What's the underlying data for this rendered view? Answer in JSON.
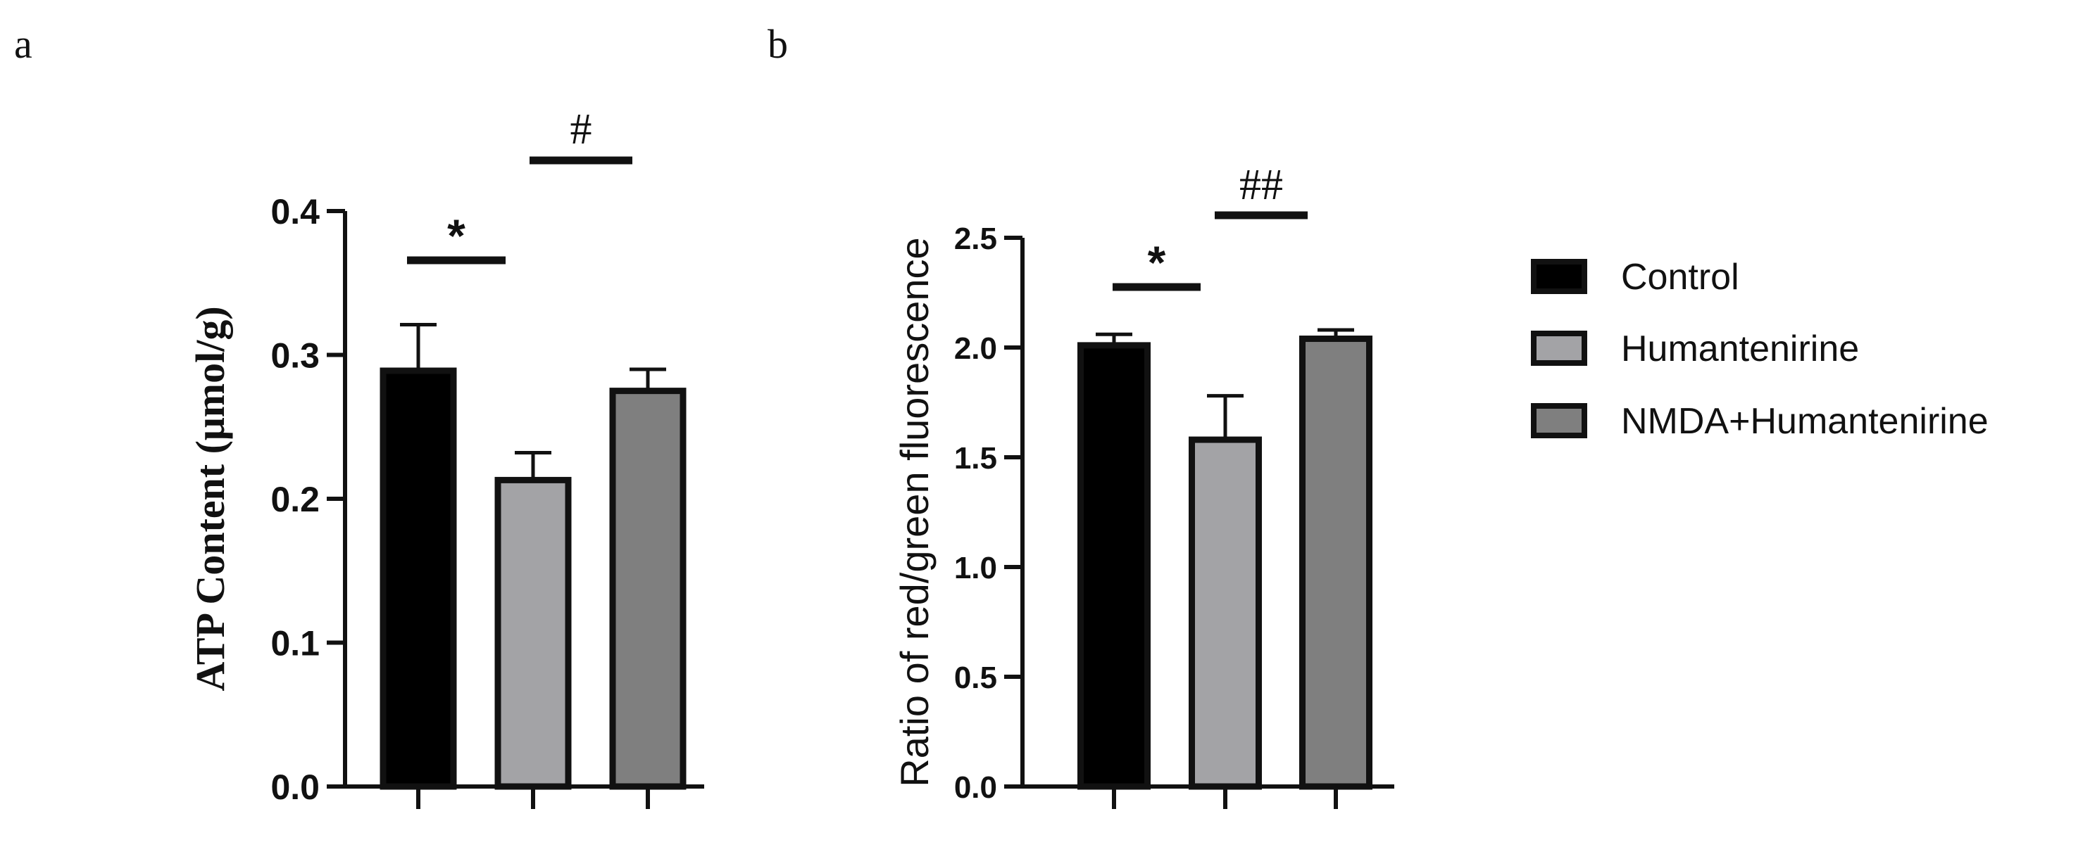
{
  "panels": [
    {
      "label": "a"
    },
    {
      "label": "b"
    }
  ],
  "legend": [
    {
      "name": "Control",
      "color": "#000000"
    },
    {
      "name": "Humantenirine",
      "color": "#a3a3a6"
    },
    {
      "name": "NMDA+Humantenirine",
      "color": "#7f7f7f"
    }
  ],
  "chart_data": [
    {
      "type": "bar",
      "panel": "a",
      "categories": [
        "Control",
        "Humantenirine",
        "NMDA+Humantenirine"
      ],
      "values": [
        0.289,
        0.213,
        0.275
      ],
      "errors": [
        0.032,
        0.019,
        0.015
      ],
      "ylabel": "ATP Content (μmol/g)",
      "ylim": [
        0,
        0.4
      ],
      "yticks": [
        "0.0",
        "0.1",
        "0.2",
        "0.3",
        "0.4"
      ],
      "significance": [
        {
          "symbol": "*",
          "from": 0,
          "to": 1
        },
        {
          "symbol": "#",
          "from": 1,
          "to": 2
        }
      ]
    },
    {
      "type": "bar",
      "panel": "b",
      "categories": [
        "Control",
        "Humantenirine",
        "NMDA+Humantenirine"
      ],
      "values": [
        2.01,
        1.58,
        2.04
      ],
      "errors": [
        0.05,
        0.2,
        0.04
      ],
      "ylabel": "Ratio of red/green fluorescence",
      "ylim": [
        0,
        2.5
      ],
      "yticks": [
        "0.0",
        "0.5",
        "1.0",
        "1.5",
        "2.0",
        "2.5"
      ],
      "significance": [
        {
          "symbol": "*",
          "from": 0,
          "to": 1
        },
        {
          "symbol": "##",
          "from": 1,
          "to": 2
        }
      ]
    }
  ]
}
